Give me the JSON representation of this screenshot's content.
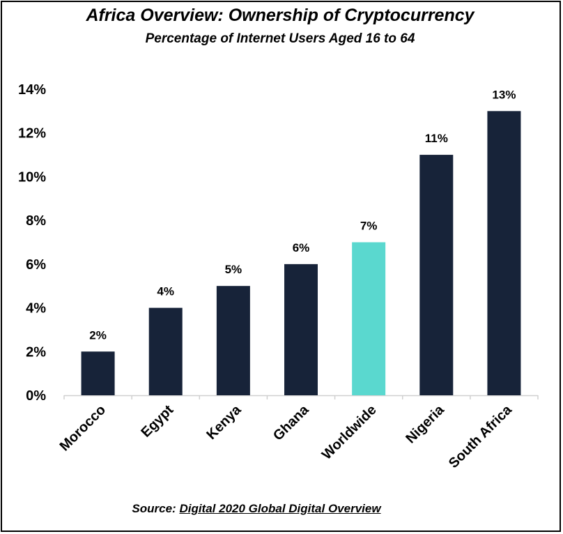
{
  "chart_data": {
    "type": "bar",
    "title": "Africa Overview: Ownership of Cryptocurrency",
    "subtitle": "Percentage of Internet Users Aged 16 to 64",
    "categories": [
      "Morocco",
      "Egypt",
      "Kenya",
      "Ghana",
      "Worldwide",
      "Nigeria",
      "South Africa"
    ],
    "values": [
      2,
      4,
      5,
      6,
      7,
      11,
      13
    ],
    "data_labels": [
      "2%",
      "4%",
      "5%",
      "6%",
      "7%",
      "11%",
      "13%"
    ],
    "highlight_category": "Worldwide",
    "ylim": [
      0,
      14
    ],
    "yticks": [
      0,
      2,
      4,
      6,
      8,
      10,
      12,
      14
    ],
    "ytick_labels": [
      "0%",
      "2%",
      "4%",
      "6%",
      "8%",
      "10%",
      "12%",
      "14%"
    ],
    "xlabel": "",
    "ylabel": "",
    "grid": false,
    "colors": {
      "bar": "#172339",
      "highlight": "#5ad8cf",
      "axis": "#d0d0d0"
    }
  },
  "source": {
    "prefix": "Source:",
    "link_text": "Digital 2020 Global Digital Overview"
  }
}
